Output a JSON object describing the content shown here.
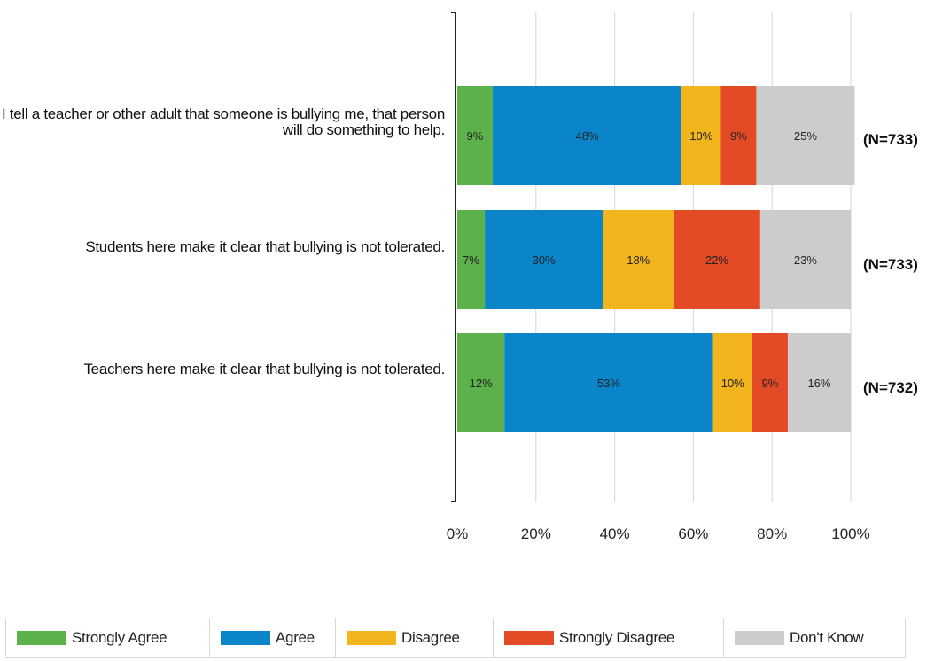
{
  "chart_data": {
    "type": "bar",
    "orientation": "horizontal",
    "stacked": true,
    "categories": [
      "If I tell a teacher or other adult that someone is bullying me, that person will do something to help.",
      "Students here make it clear that bullying is not tolerated.",
      "Teachers here make it clear that bullying is not tolerated."
    ],
    "n_labels": [
      "(N=733)",
      "(N=733)",
      "(N=732)"
    ],
    "series": [
      {
        "name": "Strongly Agree",
        "color": "#5db14a",
        "values": [
          9,
          7,
          12
        ],
        "labels": [
          "9%",
          "7%",
          "12%"
        ]
      },
      {
        "name": "Agree",
        "color": "#0a85c9",
        "values": [
          48,
          30,
          53
        ],
        "labels": [
          "48%",
          "30%",
          "53%"
        ]
      },
      {
        "name": "Disagree",
        "color": "#f2b51e",
        "values": [
          10,
          18,
          10
        ],
        "labels": [
          "10%",
          "18%",
          "10%"
        ]
      },
      {
        "name": "Strongly Disagree",
        "color": "#e34a26",
        "values": [
          9,
          22,
          9
        ],
        "labels": [
          "9%",
          "22%",
          "9%"
        ]
      },
      {
        "name": "Don't Know",
        "color": "#cccccc",
        "values": [
          25,
          23,
          16
        ],
        "labels": [
          "25%",
          "23%",
          "16%"
        ]
      }
    ],
    "xlim": [
      0,
      100
    ],
    "xticks": [
      "0%",
      "20%",
      "40%",
      "60%",
      "80%",
      "100%"
    ],
    "grid": true,
    "legend_position": "bottom"
  }
}
